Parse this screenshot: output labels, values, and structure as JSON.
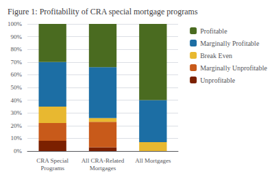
{
  "chart_data": {
    "type": "bar",
    "title": "Figure 1: Profitability of CRA special mortgage programs",
    "categories": [
      "CRA Special\nPrograms",
      "All CRA-Related\nMortgages",
      "All Mortgages"
    ],
    "series": [
      {
        "name": "Unprofitable",
        "color": "#7B2000",
        "values": [
          8,
          3,
          0
        ]
      },
      {
        "name": "Marginally Unprofitable",
        "color": "#C85A1A",
        "values": [
          14,
          20,
          0
        ]
      },
      {
        "name": "Break Even",
        "color": "#E8B830",
        "values": [
          13,
          3,
          7
        ]
      },
      {
        "name": "Marginally Profitable",
        "color": "#1C6EA4",
        "values": [
          35,
          40,
          33
        ]
      },
      {
        "name": "Profitable",
        "color": "#4A6B20",
        "values": [
          30,
          34,
          60
        ]
      }
    ],
    "stacked": true,
    "ylim": [
      0,
      100
    ],
    "yticks": [
      {
        "value": 0,
        "label": "0%"
      },
      {
        "value": 10,
        "label": "10%"
      },
      {
        "value": 20,
        "label": "20%"
      },
      {
        "value": 30,
        "label": "30%"
      },
      {
        "value": 40,
        "label": "40%"
      },
      {
        "value": 50,
        "label": "50%"
      },
      {
        "value": 60,
        "label": "60%"
      },
      {
        "value": 70,
        "label": "70%"
      },
      {
        "value": 80,
        "label": "80%"
      },
      {
        "value": 90,
        "label": "90%"
      },
      {
        "value": 100,
        "label": "100%"
      }
    ],
    "grid": true,
    "legend": "right"
  }
}
